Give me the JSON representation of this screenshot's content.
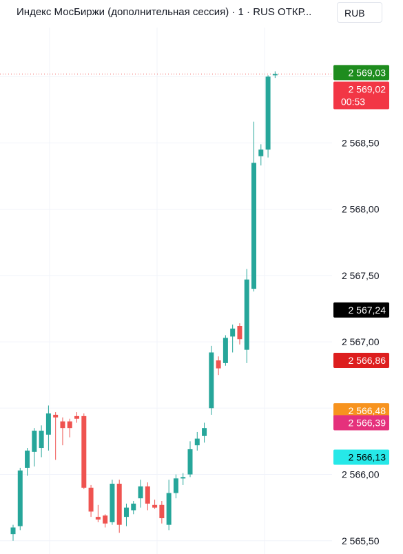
{
  "header": {
    "title": "Индекс МосБиржи (дополнительная сессия) · 1 · RUS  ОТКР...",
    "currency": "RUB"
  },
  "colors": {
    "up": "#26a69a",
    "down": "#ef5350",
    "grid": "#f0f3fa",
    "axis_text": "#131722"
  },
  "chart_data": {
    "type": "candlestick",
    "timeframe": "1",
    "ylim": [
      565.4,
      569.37
    ],
    "yticks": [
      565.5,
      566.0,
      566.5,
      567.0,
      567.5,
      568.0,
      568.5,
      569.0
    ],
    "ytick_labels": [
      "2 565,50",
      "2 566,00",
      "",
      "2 567,00",
      "2 567,50",
      "2 568,00",
      "2 568,50",
      ""
    ],
    "candles": [
      {
        "o": 565.55,
        "h": 565.62,
        "l": 565.5,
        "c": 565.6
      },
      {
        "o": 565.61,
        "h": 566.05,
        "l": 565.58,
        "c": 566.03
      },
      {
        "o": 566.05,
        "h": 566.2,
        "l": 565.99,
        "c": 566.18
      },
      {
        "o": 566.17,
        "h": 566.35,
        "l": 566.06,
        "c": 566.33
      },
      {
        "o": 566.2,
        "h": 566.37,
        "l": 566.13,
        "c": 566.33
      },
      {
        "o": 566.3,
        "h": 566.52,
        "l": 566.18,
        "c": 566.46
      },
      {
        "o": 566.45,
        "h": 566.47,
        "l": 566.11,
        "c": 566.43
      },
      {
        "o": 566.4,
        "h": 566.43,
        "l": 566.22,
        "c": 566.35
      },
      {
        "o": 566.4,
        "h": 566.42,
        "l": 566.28,
        "c": 566.35
      },
      {
        "o": 566.44,
        "h": 566.47,
        "l": 566.39,
        "c": 566.42
      },
      {
        "o": 566.44,
        "h": 566.46,
        "l": 565.89,
        "c": 565.9
      },
      {
        "o": 565.9,
        "h": 565.92,
        "l": 565.68,
        "c": 565.72
      },
      {
        "o": 565.68,
        "h": 565.77,
        "l": 565.64,
        "c": 565.66
      },
      {
        "o": 565.69,
        "h": 565.7,
        "l": 565.6,
        "c": 565.63
      },
      {
        "o": 565.64,
        "h": 565.96,
        "l": 565.62,
        "c": 565.93
      },
      {
        "o": 565.93,
        "h": 565.96,
        "l": 565.56,
        "c": 565.62
      },
      {
        "o": 565.68,
        "h": 565.78,
        "l": 565.61,
        "c": 565.75
      },
      {
        "o": 565.73,
        "h": 565.8,
        "l": 565.7,
        "c": 565.78
      },
      {
        "o": 565.82,
        "h": 565.96,
        "l": 565.75,
        "c": 565.91
      },
      {
        "o": 565.91,
        "h": 565.94,
        "l": 565.73,
        "c": 565.78
      },
      {
        "o": 565.77,
        "h": 565.81,
        "l": 565.74,
        "c": 565.75
      },
      {
        "o": 565.77,
        "h": 565.8,
        "l": 565.63,
        "c": 565.67
      },
      {
        "o": 565.62,
        "h": 565.96,
        "l": 565.58,
        "c": 565.86
      },
      {
        "o": 565.86,
        "h": 566.0,
        "l": 565.82,
        "c": 565.97
      },
      {
        "o": 565.98,
        "h": 566.01,
        "l": 565.92,
        "c": 565.98
      },
      {
        "o": 566.0,
        "h": 566.25,
        "l": 565.98,
        "c": 566.19
      },
      {
        "o": 566.22,
        "h": 566.32,
        "l": 566.18,
        "c": 566.27
      },
      {
        "o": 566.29,
        "h": 566.39,
        "l": 566.24,
        "c": 566.35
      },
      {
        "o": 566.5,
        "h": 566.97,
        "l": 566.45,
        "c": 566.92
      },
      {
        "o": 566.86,
        "h": 566.89,
        "l": 566.75,
        "c": 566.8
      },
      {
        "o": 566.84,
        "h": 567.05,
        "l": 566.82,
        "c": 567.03
      },
      {
        "o": 567.04,
        "h": 567.13,
        "l": 566.92,
        "c": 567.1
      },
      {
        "o": 567.12,
        "h": 567.14,
        "l": 566.98,
        "c": 567.02
      },
      {
        "o": 566.94,
        "h": 567.55,
        "l": 566.84,
        "c": 567.47
      },
      {
        "o": 567.4,
        "h": 568.66,
        "l": 567.38,
        "c": 568.35
      },
      {
        "o": 568.4,
        "h": 568.49,
        "l": 568.33,
        "c": 568.45
      },
      {
        "o": 568.45,
        "h": 569.01,
        "l": 568.39,
        "c": 569.0
      },
      {
        "o": 569.02,
        "h": 569.04,
        "l": 568.99,
        "c": 569.02
      }
    ],
    "price_labels": [
      {
        "price": 569.03,
        "text": "2 569,03",
        "color": "#1e8c1e",
        "text_color": "#ffffff",
        "sub": ""
      },
      {
        "price": 568.9,
        "text": "2 569,02",
        "color": "#f23645",
        "text_color": "#ffffff",
        "sub": "00:53"
      },
      {
        "price": 567.24,
        "text": "2 567,24",
        "color": "#000000",
        "text_color": "#ffffff",
        "sub": ""
      },
      {
        "price": 566.86,
        "text": "2 566,86",
        "color": "#dd1e1e",
        "text_color": "#ffffff",
        "sub": ""
      },
      {
        "price": 566.48,
        "text": "2 566,48",
        "color": "#f7931e",
        "text_color": "#ffffff",
        "sub": ""
      },
      {
        "price": 566.39,
        "text": "2 566,39",
        "color": "#e5317c",
        "text_color": "#ffffff",
        "sub": ""
      },
      {
        "price": 566.13,
        "text": "2 566,13",
        "color": "#26e8e8",
        "text_color": "#000000",
        "sub": ""
      }
    ],
    "current_price": 569.02,
    "grid": true
  }
}
